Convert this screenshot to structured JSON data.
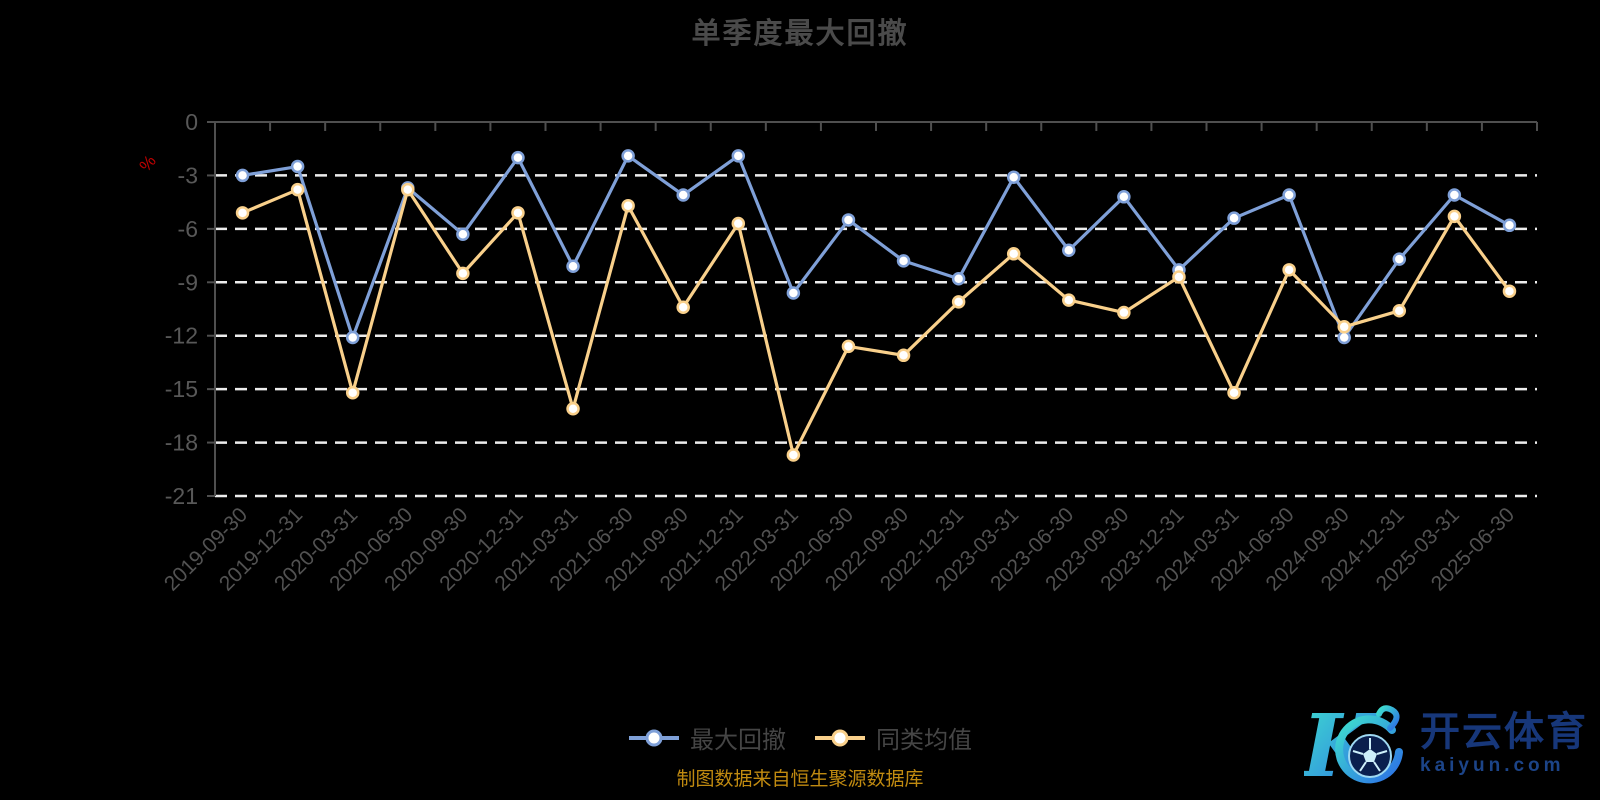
{
  "page": {
    "footer_note": "制图数据来自恒生聚源数据库",
    "watermark": {
      "brand": "开云体育",
      "domain": "kaiyun.com",
      "logo_letter": "K"
    }
  },
  "chart_data": {
    "type": "line",
    "title": "单季度最大回撤",
    "xlabel": "",
    "ylabel": "%",
    "ylim": [
      -21,
      0
    ],
    "yticks": [
      0,
      -3,
      -6,
      -9,
      -12,
      -15,
      -18,
      -21
    ],
    "grid": true,
    "grid_style": "dashed",
    "legend_position": "bottom",
    "categories": [
      "2019-09-30",
      "2019-12-31",
      "2020-03-31",
      "2020-06-30",
      "2020-09-30",
      "2020-12-31",
      "2021-03-31",
      "2021-06-30",
      "2021-09-30",
      "2021-12-31",
      "2022-03-31",
      "2022-06-30",
      "2022-09-30",
      "2022-12-31",
      "2023-03-31",
      "2023-06-30",
      "2023-09-30",
      "2023-12-31",
      "2024-03-31",
      "2024-06-30",
      "2024-09-30",
      "2024-12-31",
      "2025-03-31",
      "2025-06-30"
    ],
    "series": [
      {
        "name": "最大回撤",
        "color": "#7FA0D8",
        "values": [
          -3.0,
          -2.5,
          -12.1,
          -3.7,
          -6.3,
          -2.0,
          -8.1,
          -1.9,
          -4.1,
          -1.9,
          -9.6,
          -5.5,
          -7.8,
          -8.8,
          -3.1,
          -7.2,
          -4.2,
          -8.3,
          -5.4,
          -4.1,
          -12.1,
          -7.7,
          -4.1,
          -5.8
        ]
      },
      {
        "name": "同类均值",
        "color": "#F9D08B",
        "values": [
          -5.1,
          -3.8,
          -15.2,
          -3.8,
          -8.5,
          -5.1,
          -16.1,
          -4.7,
          -10.4,
          -5.7,
          -18.7,
          -12.6,
          -13.1,
          -10.1,
          -7.4,
          -10.0,
          -10.7,
          -8.7,
          -15.2,
          -8.3,
          -11.5,
          -10.6,
          -5.3,
          -9.5
        ]
      }
    ]
  },
  "colors": {
    "background": "#000000",
    "title": "#4A4A4A",
    "axis_line": "#4F4F4F",
    "y_tick_label": "#585858",
    "x_tick_label": "#525252",
    "gridline": "#EDEDED",
    "axis_name": "#C00000",
    "marker_fill": "#FFFFFF",
    "legend_text": "#454545",
    "footer": "#C08A10",
    "watermark_brand": "#17377A",
    "watermark_domain": "#1C4488",
    "logo_gradient_start": "#3FE0CE",
    "logo_gradient_end": "#2C6FE6",
    "ball_fill": "#0A1F4E",
    "ball_line": "#9FD9F2"
  }
}
